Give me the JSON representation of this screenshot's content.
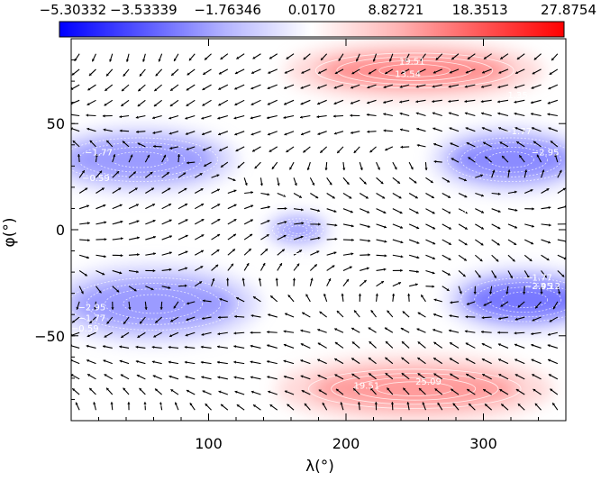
{
  "chart_data": {
    "type": "heatmap",
    "title": "",
    "colorbar": {
      "tick_labels": [
        "−5.30332",
        "−3.53339",
        "−1.76346",
        "0.0170",
        "8.82721",
        "18.3513",
        "27.8754"
      ],
      "colors": [
        "#0000ff",
        "#5a5aff",
        "#b4b4ff",
        "#ffffff",
        "#ffb4b4",
        "#ff5a5a",
        "#ff0000"
      ]
    },
    "x_axis": {
      "label": "λ(°)",
      "range": [
        0,
        360
      ],
      "ticks": [
        100,
        200,
        300
      ]
    },
    "y_axis": {
      "label": "φ(°)",
      "range": [
        -90,
        90
      ],
      "ticks": [
        50,
        0,
        -50
      ]
    },
    "contour_labels": [
      {
        "text": "19.51",
        "x": 248,
        "y": 78
      },
      {
        "text": "13.54",
        "x": 245,
        "y": 72
      },
      {
        "text": "1.35",
        "x": 325,
        "y": 62
      },
      {
        "text": "−1.77",
        "x": 20,
        "y": 35
      },
      {
        "text": "−1.77",
        "x": 325,
        "y": 45
      },
      {
        "text": "−2.95",
        "x": 345,
        "y": 35
      },
      {
        "text": "−0.59",
        "x": 18,
        "y": 23
      },
      {
        "text": "−0.59",
        "x": 150,
        "y": 13
      },
      {
        "text": "−0.59",
        "x": 280,
        "y": 6
      },
      {
        "text": "−0.59",
        "x": 215,
        "y": -3
      },
      {
        "text": "−1.77",
        "x": 160,
        "y": -14
      },
      {
        "text": "−1.77",
        "x": 340,
        "y": -24
      },
      {
        "text": "−2.95",
        "x": 340,
        "y": -28
      },
      {
        "text": "−4.12",
        "x": 346,
        "y": -28
      },
      {
        "text": "−2.95",
        "x": 15,
        "y": -38
      },
      {
        "text": "−1.77",
        "x": 15,
        "y": -43
      },
      {
        "text": "−0.59",
        "x": 10,
        "y": -48
      },
      {
        "text": "19.51",
        "x": 215,
        "y": -75
      },
      {
        "text": "25.09",
        "x": 260,
        "y": -73
      },
      {
        "text": "−0.59",
        "x": 60,
        "y": -84
      }
    ],
    "field_features": [
      {
        "kind": "hot",
        "x": 250,
        "y": 75,
        "rx": 70,
        "ry": 8,
        "value": 27.8754
      },
      {
        "kind": "hot",
        "x": 250,
        "y": -75,
        "rx": 75,
        "ry": 9,
        "value": 25.09
      },
      {
        "kind": "cold",
        "x": 330,
        "y": -33,
        "rx": 45,
        "ry": 10,
        "value": -5.30332
      },
      {
        "kind": "cold",
        "x": 320,
        "y": 33,
        "rx": 45,
        "ry": 10,
        "value": -3.5
      },
      {
        "kind": "cold",
        "x": 50,
        "y": 33,
        "rx": 55,
        "ry": 10,
        "value": -2.9
      },
      {
        "kind": "cold",
        "x": 60,
        "y": -35,
        "rx": 60,
        "ry": 12,
        "value": -3.0
      },
      {
        "kind": "cold",
        "x": 165,
        "y": 0,
        "rx": 18,
        "ry": 5,
        "value": -2.4
      }
    ]
  }
}
